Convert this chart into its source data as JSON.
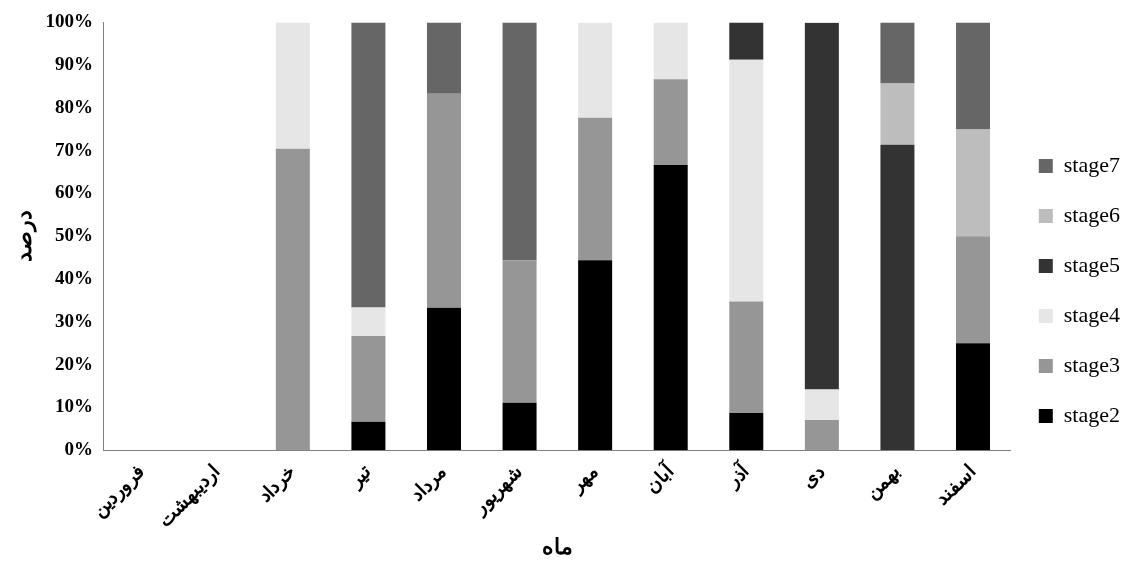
{
  "chart_data": {
    "type": "bar",
    "stacked": true,
    "xlabel": "ماه",
    "ylabel": "درصد",
    "categories": [
      "فروردین",
      "اردیبهشت",
      "خرداد",
      "تیر",
      "مرداد",
      "شهریور",
      "مهر",
      "آبان",
      "آذر",
      "دی",
      "بهمن",
      "اسفند"
    ],
    "series": [
      {
        "name": "stage2",
        "color": "#000000",
        "values": [
          0,
          0,
          0,
          6.7,
          33.3,
          11.1,
          44.4,
          66.7,
          8.7,
          0,
          0,
          25
        ]
      },
      {
        "name": "stage3",
        "color": "#969696",
        "values": [
          0,
          0,
          70.5,
          20,
          50,
          33.3,
          33.3,
          20,
          26.1,
          7.1,
          0,
          25
        ]
      },
      {
        "name": "stage4",
        "color": "#e6e6e6",
        "values": [
          0,
          0,
          29.5,
          6.7,
          0,
          0,
          22.2,
          13.3,
          56.5,
          7.1,
          0,
          0
        ]
      },
      {
        "name": "stage5",
        "color": "#333333",
        "values": [
          0,
          0,
          0,
          0,
          0,
          0,
          0,
          0,
          8.7,
          85.7,
          71.4,
          0
        ]
      },
      {
        "name": "stage6",
        "color": "#bdbdbd",
        "values": [
          0,
          0,
          0,
          0,
          0,
          0,
          0,
          0,
          0,
          0,
          14.3,
          25
        ]
      },
      {
        "name": "stage7",
        "color": "#666666",
        "values": [
          0,
          0,
          0,
          66.6,
          16.7,
          55.6,
          0,
          0,
          0,
          0,
          14.3,
          25
        ]
      }
    ],
    "ylim": [
      0,
      100
    ],
    "yticks": [
      {
        "value": 0,
        "label": "0%"
      },
      {
        "value": 10,
        "label": "10%"
      },
      {
        "value": 20,
        "label": "20%"
      },
      {
        "value": 30,
        "label": "30%"
      },
      {
        "value": 40,
        "label": "40%"
      },
      {
        "value": 50,
        "label": "50%"
      },
      {
        "value": 60,
        "label": "60%"
      },
      {
        "value": 70,
        "label": "70%"
      },
      {
        "value": 80,
        "label": "80%"
      },
      {
        "value": 90,
        "label": "90%"
      },
      {
        "value": 100,
        "label": "100%"
      }
    ],
    "grid": false,
    "legend": "right"
  }
}
